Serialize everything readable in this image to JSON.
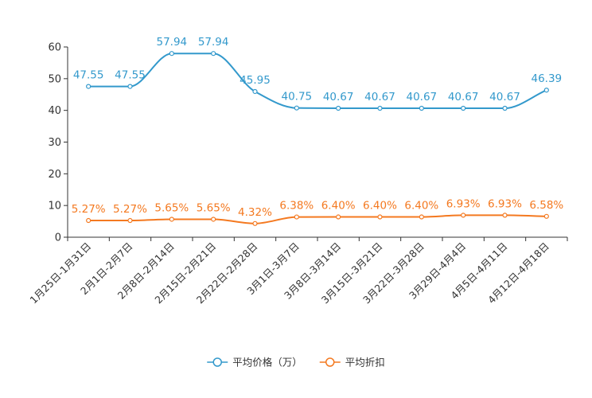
{
  "chart_data": {
    "type": "line",
    "categories": [
      "1月25日-1月31日",
      "2月1日-2月7日",
      "2月8日-2月14日",
      "2月15日-2月21日",
      "2月22日-2月28日",
      "3月1日-3月7日",
      "3月8日-3月14日",
      "3月15日-3月21日",
      "3月22日-3月28日",
      "3月29日-4月4日",
      "4月5日-4月11日",
      "4月12日-4月18日"
    ],
    "series": [
      {
        "name": "平均价格（万）",
        "color": "#3399cc",
        "values": [
          47.55,
          47.55,
          57.94,
          57.94,
          45.95,
          40.75,
          40.67,
          40.67,
          40.67,
          40.67,
          40.67,
          46.39
        ],
        "labels": [
          "47.55",
          "47.55",
          "57.94",
          "57.94",
          "45.95",
          "40.75",
          "40.67",
          "40.67",
          "40.67",
          "40.67",
          "40.67",
          "46.39"
        ]
      },
      {
        "name": "平均折扣",
        "color": "#f47920",
        "values": [
          5.27,
          5.27,
          5.65,
          5.65,
          4.32,
          6.38,
          6.4,
          6.4,
          6.4,
          6.93,
          6.93,
          6.58
        ],
        "labels": [
          "5.27%",
          "5.27%",
          "5.65%",
          "5.65%",
          "4.32%",
          "6.38%",
          "6.40%",
          "6.40%",
          "6.40%",
          "6.93%",
          "6.93%",
          "6.58%"
        ]
      }
    ],
    "ylim": [
      0,
      60
    ],
    "yticks": [
      "0",
      "10",
      "20",
      "30",
      "40",
      "50",
      "60"
    ],
    "title": "",
    "xlabel": "",
    "ylabel": "",
    "grid": false,
    "legend_position": "bottom-center"
  }
}
